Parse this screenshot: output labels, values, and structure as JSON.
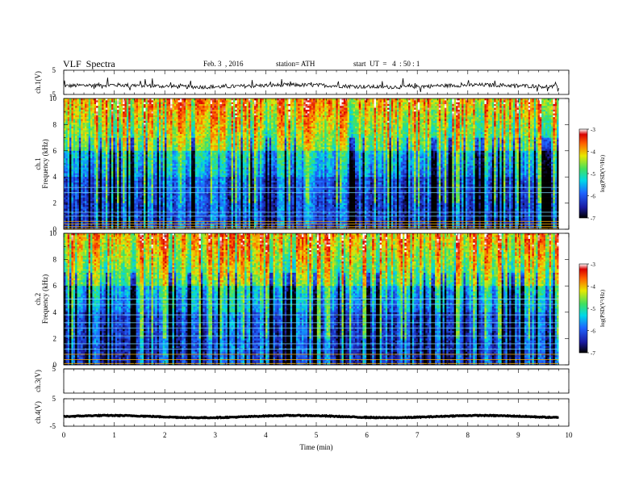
{
  "header": {
    "title": "VLF  Spectra",
    "date": "Feb. 3  , 2016",
    "station": "station= ATH",
    "start": "start  UT  =   4  : 50 : 1"
  },
  "chart_data": [
    {
      "type": "line",
      "name": "ch1-waveform",
      "ylabel": "ch.1(V)",
      "ylim": [
        -5,
        5
      ],
      "y_ticks": [
        "5",
        "-5"
      ],
      "baseline": -1.5,
      "noise_amplitude": 0.8,
      "spike_amplitude": 3.0
    },
    {
      "type": "heatmap",
      "name": "ch1-spectrogram",
      "ylabel_line1": "ch.1",
      "ylabel_line2": "Frequency (kHz)",
      "ylim": [
        0,
        10
      ],
      "y_ticks": [
        "0",
        "2",
        "4",
        "6",
        "8",
        "10"
      ],
      "colorbar": {
        "label": "log(PSD(V²/Hz)",
        "range": [
          -7,
          -3
        ],
        "ticks": [
          "-3",
          "-4",
          "-5",
          "-6",
          "-7"
        ]
      },
      "bright_lines_khz": [
        3.2,
        2.8,
        1.3,
        1.0,
        0.6,
        0.4,
        0.2,
        0.05
      ]
    },
    {
      "type": "heatmap",
      "name": "ch2-spectrogram",
      "ylabel_line1": "ch.2",
      "ylabel_line2": "Frequency (kHz)",
      "ylim": [
        0,
        10
      ],
      "y_ticks": [
        "0",
        "2",
        "4",
        "6",
        "8",
        "10"
      ],
      "colorbar": {
        "label": "log(PSD(V²/Hz)",
        "range": [
          -7,
          -3
        ],
        "ticks": [
          "-3",
          "-4",
          "-5",
          "-6",
          "-7"
        ]
      },
      "bright_lines_khz": [
        5.0,
        4.6,
        3.8,
        3.2,
        2.8,
        2.2,
        1.6,
        1.2,
        0.8,
        0.4,
        0.1
      ]
    },
    {
      "type": "line",
      "name": "ch3-waveform",
      "ylabel": "ch.3(V)",
      "ylim": [
        -5,
        5
      ],
      "y_ticks": [
        "5"
      ],
      "baseline": 5,
      "noise_amplitude": 0
    },
    {
      "type": "line",
      "name": "ch4-waveform",
      "ylabel": "ch.4(V)",
      "ylim": [
        -5,
        5
      ],
      "y_ticks": [
        "5",
        "-5"
      ],
      "baseline": -1.5,
      "noise_amplitude": 0.15
    }
  ],
  "x_axis": {
    "xlabel": "Time  (min)",
    "xlim": [
      0,
      10
    ],
    "data_end": 9.8,
    "ticks": [
      "0",
      "1",
      "2",
      "3",
      "4",
      "5",
      "6",
      "7",
      "8",
      "9",
      "10"
    ]
  }
}
